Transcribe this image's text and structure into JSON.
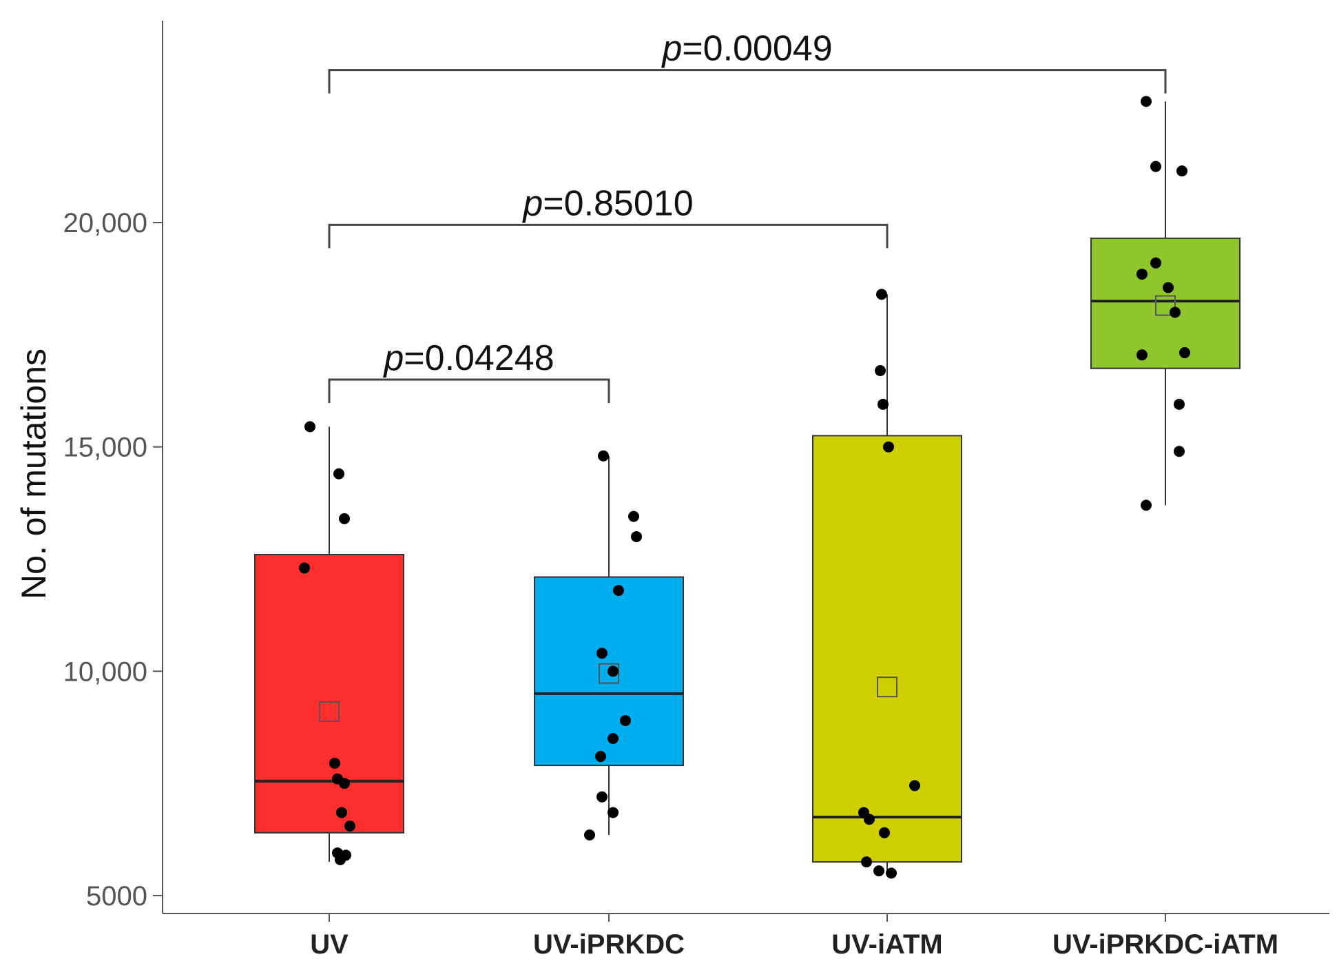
{
  "chart_data": {
    "type": "box",
    "title": "",
    "xlabel": "",
    "ylabel": "No. of mutations",
    "ylim": [
      4600,
      24500
    ],
    "y_ticks": [
      {
        "value": 5000,
        "label": "5000"
      },
      {
        "value": 10000,
        "label": "10,000"
      },
      {
        "value": 15000,
        "label": "15,000"
      },
      {
        "value": 20000,
        "label": "20,000"
      }
    ],
    "categories": [
      "UV",
      "UV-iPRKDC",
      "UV-iATM",
      "UV-iPRKDC-iATM"
    ],
    "series": [
      {
        "name": "UV",
        "color": "#fd2e2e",
        "box": {
          "whisker_low": 5750,
          "q1": 6400,
          "median": 7550,
          "q3": 12600,
          "whisker_high": 15450,
          "mean": 9100
        },
        "points": [
          15450,
          14400,
          13400,
          12300,
          7950,
          7600,
          7500,
          6850,
          6550,
          5950,
          5900,
          5800
        ]
      },
      {
        "name": "UV-iPRKDC",
        "color": "#00aeef",
        "box": {
          "whisker_low": 6350,
          "q1": 7900,
          "median": 9500,
          "q3": 12100,
          "whisker_high": 14800,
          "mean": 9950
        },
        "points": [
          14800,
          13450,
          13000,
          11800,
          10400,
          10000,
          8900,
          8500,
          8100,
          7200,
          6850,
          6350
        ]
      },
      {
        "name": "UV-iATM",
        "color": "#cfcf00",
        "box": {
          "whisker_low": 5500,
          "q1": 5750,
          "median": 6750,
          "q3": 15250,
          "whisker_high": 18400,
          "mean": 9650
        },
        "points": [
          18400,
          16700,
          15950,
          15000,
          7450,
          6850,
          6700,
          6400,
          5750,
          5550,
          5500
        ]
      },
      {
        "name": "UV-iPRKDC-iATM",
        "color": "#8ec62b",
        "box": {
          "whisker_low": 13700,
          "q1": 16750,
          "median": 18250,
          "q3": 19650,
          "whisker_high": 22700,
          "mean": 18150
        },
        "points": [
          22700,
          21250,
          21150,
          19100,
          18850,
          18550,
          18000,
          17100,
          17050,
          15950,
          14900,
          13700
        ]
      }
    ],
    "annotations": [
      {
        "from": "UV",
        "to": "UV-iPRKDC",
        "y": 16500,
        "p_symbol": "p",
        "p_text": "=0.04248"
      },
      {
        "from": "UV",
        "to": "UV-iATM",
        "y": 19950,
        "p_symbol": "p",
        "p_text": "=0.85010"
      },
      {
        "from": "UV",
        "to": "UV-iPRKDC-iATM",
        "y": 23400,
        "p_symbol": "p",
        "p_text": "=0.00049"
      }
    ]
  }
}
